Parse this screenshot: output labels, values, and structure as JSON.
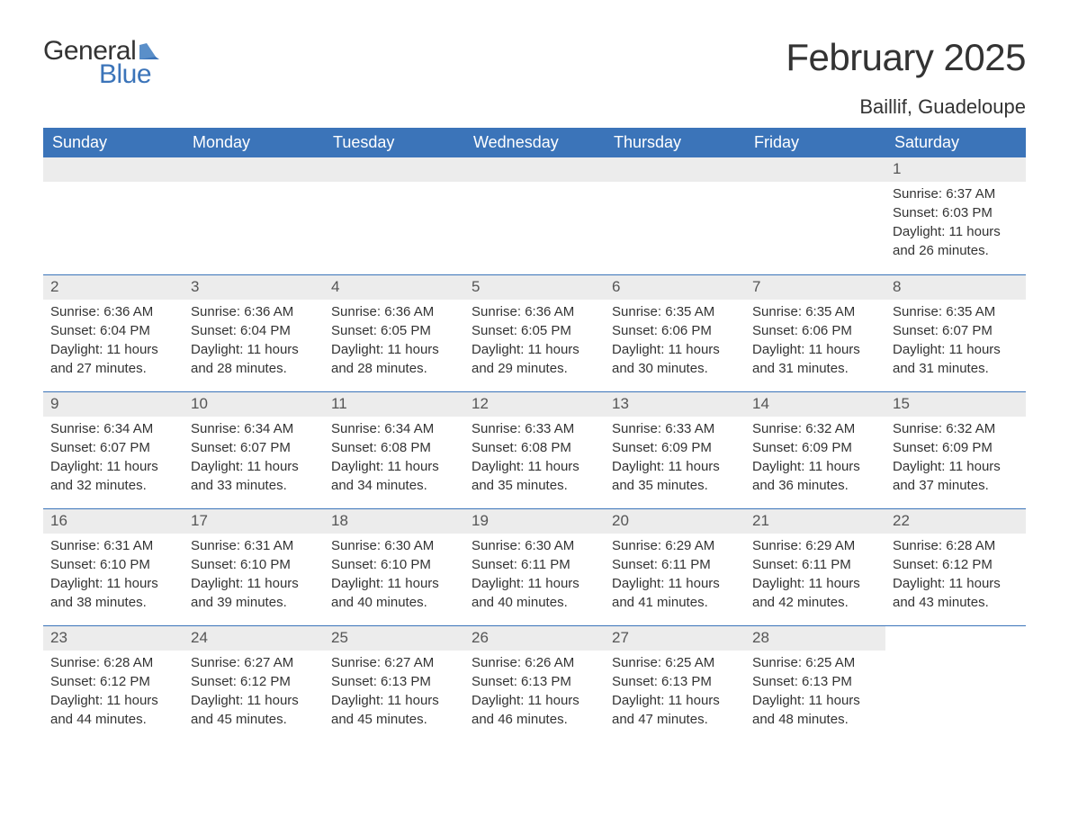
{
  "logo": {
    "text1": "General",
    "text2": "Blue",
    "icon_color": "#3b74b9"
  },
  "title": {
    "month": "February 2025",
    "location": "Baillif, Guadeloupe"
  },
  "colors": {
    "header_bg": "#3b74b9",
    "header_text": "#ffffff",
    "daynum_bg": "#ececec",
    "row_border": "#3b74b9",
    "text": "#333333"
  },
  "weekdays": [
    "Sunday",
    "Monday",
    "Tuesday",
    "Wednesday",
    "Thursday",
    "Friday",
    "Saturday"
  ],
  "weeks": [
    [
      null,
      null,
      null,
      null,
      null,
      null,
      {
        "n": "1",
        "sunrise": "Sunrise: 6:37 AM",
        "sunset": "Sunset: 6:03 PM",
        "daylight": "Daylight: 11 hours and 26 minutes."
      }
    ],
    [
      {
        "n": "2",
        "sunrise": "Sunrise: 6:36 AM",
        "sunset": "Sunset: 6:04 PM",
        "daylight": "Daylight: 11 hours and 27 minutes."
      },
      {
        "n": "3",
        "sunrise": "Sunrise: 6:36 AM",
        "sunset": "Sunset: 6:04 PM",
        "daylight": "Daylight: 11 hours and 28 minutes."
      },
      {
        "n": "4",
        "sunrise": "Sunrise: 6:36 AM",
        "sunset": "Sunset: 6:05 PM",
        "daylight": "Daylight: 11 hours and 28 minutes."
      },
      {
        "n": "5",
        "sunrise": "Sunrise: 6:36 AM",
        "sunset": "Sunset: 6:05 PM",
        "daylight": "Daylight: 11 hours and 29 minutes."
      },
      {
        "n": "6",
        "sunrise": "Sunrise: 6:35 AM",
        "sunset": "Sunset: 6:06 PM",
        "daylight": "Daylight: 11 hours and 30 minutes."
      },
      {
        "n": "7",
        "sunrise": "Sunrise: 6:35 AM",
        "sunset": "Sunset: 6:06 PM",
        "daylight": "Daylight: 11 hours and 31 minutes."
      },
      {
        "n": "8",
        "sunrise": "Sunrise: 6:35 AM",
        "sunset": "Sunset: 6:07 PM",
        "daylight": "Daylight: 11 hours and 31 minutes."
      }
    ],
    [
      {
        "n": "9",
        "sunrise": "Sunrise: 6:34 AM",
        "sunset": "Sunset: 6:07 PM",
        "daylight": "Daylight: 11 hours and 32 minutes."
      },
      {
        "n": "10",
        "sunrise": "Sunrise: 6:34 AM",
        "sunset": "Sunset: 6:07 PM",
        "daylight": "Daylight: 11 hours and 33 minutes."
      },
      {
        "n": "11",
        "sunrise": "Sunrise: 6:34 AM",
        "sunset": "Sunset: 6:08 PM",
        "daylight": "Daylight: 11 hours and 34 minutes."
      },
      {
        "n": "12",
        "sunrise": "Sunrise: 6:33 AM",
        "sunset": "Sunset: 6:08 PM",
        "daylight": "Daylight: 11 hours and 35 minutes."
      },
      {
        "n": "13",
        "sunrise": "Sunrise: 6:33 AM",
        "sunset": "Sunset: 6:09 PM",
        "daylight": "Daylight: 11 hours and 35 minutes."
      },
      {
        "n": "14",
        "sunrise": "Sunrise: 6:32 AM",
        "sunset": "Sunset: 6:09 PM",
        "daylight": "Daylight: 11 hours and 36 minutes."
      },
      {
        "n": "15",
        "sunrise": "Sunrise: 6:32 AM",
        "sunset": "Sunset: 6:09 PM",
        "daylight": "Daylight: 11 hours and 37 minutes."
      }
    ],
    [
      {
        "n": "16",
        "sunrise": "Sunrise: 6:31 AM",
        "sunset": "Sunset: 6:10 PM",
        "daylight": "Daylight: 11 hours and 38 minutes."
      },
      {
        "n": "17",
        "sunrise": "Sunrise: 6:31 AM",
        "sunset": "Sunset: 6:10 PM",
        "daylight": "Daylight: 11 hours and 39 minutes."
      },
      {
        "n": "18",
        "sunrise": "Sunrise: 6:30 AM",
        "sunset": "Sunset: 6:10 PM",
        "daylight": "Daylight: 11 hours and 40 minutes."
      },
      {
        "n": "19",
        "sunrise": "Sunrise: 6:30 AM",
        "sunset": "Sunset: 6:11 PM",
        "daylight": "Daylight: 11 hours and 40 minutes."
      },
      {
        "n": "20",
        "sunrise": "Sunrise: 6:29 AM",
        "sunset": "Sunset: 6:11 PM",
        "daylight": "Daylight: 11 hours and 41 minutes."
      },
      {
        "n": "21",
        "sunrise": "Sunrise: 6:29 AM",
        "sunset": "Sunset: 6:11 PM",
        "daylight": "Daylight: 11 hours and 42 minutes."
      },
      {
        "n": "22",
        "sunrise": "Sunrise: 6:28 AM",
        "sunset": "Sunset: 6:12 PM",
        "daylight": "Daylight: 11 hours and 43 minutes."
      }
    ],
    [
      {
        "n": "23",
        "sunrise": "Sunrise: 6:28 AM",
        "sunset": "Sunset: 6:12 PM",
        "daylight": "Daylight: 11 hours and 44 minutes."
      },
      {
        "n": "24",
        "sunrise": "Sunrise: 6:27 AM",
        "sunset": "Sunset: 6:12 PM",
        "daylight": "Daylight: 11 hours and 45 minutes."
      },
      {
        "n": "25",
        "sunrise": "Sunrise: 6:27 AM",
        "sunset": "Sunset: 6:13 PM",
        "daylight": "Daylight: 11 hours and 45 minutes."
      },
      {
        "n": "26",
        "sunrise": "Sunrise: 6:26 AM",
        "sunset": "Sunset: 6:13 PM",
        "daylight": "Daylight: 11 hours and 46 minutes."
      },
      {
        "n": "27",
        "sunrise": "Sunrise: 6:25 AM",
        "sunset": "Sunset: 6:13 PM",
        "daylight": "Daylight: 11 hours and 47 minutes."
      },
      {
        "n": "28",
        "sunrise": "Sunrise: 6:25 AM",
        "sunset": "Sunset: 6:13 PM",
        "daylight": "Daylight: 11 hours and 48 minutes."
      },
      null
    ]
  ]
}
